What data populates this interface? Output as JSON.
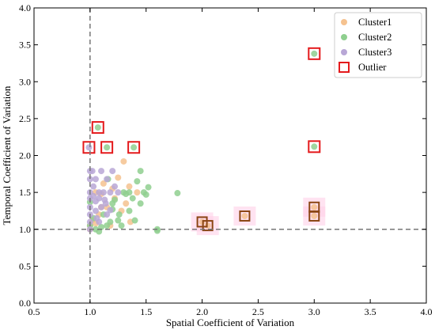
{
  "chart_data": {
    "type": "scatter",
    "title": "",
    "xlabel": "Spatial Coefficient of Variation",
    "ylabel": "Temporal Coefficient of Variation",
    "xlim": [
      0.5,
      4.0
    ],
    "ylim": [
      0.0,
      4.0
    ],
    "xticks": [
      "0.5",
      "1.0",
      "1.5",
      "2.0",
      "2.5",
      "3.0",
      "3.5",
      "4.0"
    ],
    "yticks": [
      "0.0",
      "0.5",
      "1.0",
      "1.5",
      "2.0",
      "2.5",
      "3.0",
      "3.5",
      "4.0"
    ],
    "grid": false,
    "legend_position": "top-right",
    "reference_lines": {
      "vertical_x": 1.0,
      "horizontal_y": 1.0
    },
    "series": [
      {
        "name": "Cluster1",
        "color": "#f5c28f",
        "points": [
          [
            1.0,
            1.0
          ],
          [
            1.0,
            1.05
          ],
          [
            1.02,
            1.12
          ],
          [
            1.05,
            1.08
          ],
          [
            1.08,
            1.2
          ],
          [
            1.1,
            1.3
          ],
          [
            1.05,
            1.5
          ],
          [
            1.12,
            1.62
          ],
          [
            1.2,
            1.55
          ],
          [
            1.25,
            1.7
          ],
          [
            1.18,
            1.05
          ],
          [
            1.3,
            1.92
          ],
          [
            1.35,
            1.58
          ],
          [
            1.36,
            1.1
          ],
          [
            1.42,
            1.5
          ],
          [
            1.28,
            1.25
          ],
          [
            1.1,
            1.48
          ],
          [
            1.15,
            1.3
          ],
          [
            1.22,
            1.42
          ],
          [
            1.32,
            1.35
          ],
          [
            2.0,
            1.1
          ],
          [
            2.05,
            1.05
          ],
          [
            2.38,
            1.18
          ],
          [
            3.0,
            1.18
          ],
          [
            3.0,
            1.3
          ]
        ]
      },
      {
        "name": "Cluster2",
        "color": "#8fcf8f",
        "points": [
          [
            1.0,
            1.37
          ],
          [
            1.0,
            1.05
          ],
          [
            1.03,
            1.15
          ],
          [
            1.05,
            1.0
          ],
          [
            1.08,
            0.97
          ],
          [
            1.1,
            1.03
          ],
          [
            1.12,
            1.2
          ],
          [
            1.15,
            1.05
          ],
          [
            1.18,
            1.1
          ],
          [
            1.2,
            1.27
          ],
          [
            1.22,
            1.4
          ],
          [
            1.25,
            1.12
          ],
          [
            1.28,
            1.05
          ],
          [
            1.3,
            1.5
          ],
          [
            1.32,
            1.48
          ],
          [
            1.35,
            1.5
          ],
          [
            1.38,
            1.42
          ],
          [
            1.4,
            1.12
          ],
          [
            1.42,
            1.65
          ],
          [
            1.45,
            1.79
          ],
          [
            1.48,
            1.5
          ],
          [
            1.5,
            1.47
          ],
          [
            1.52,
            1.57
          ],
          [
            1.45,
            1.35
          ],
          [
            1.6,
            1.0
          ],
          [
            1.6,
            0.98
          ],
          [
            1.78,
            1.49
          ],
          [
            1.16,
            1.68
          ],
          [
            1.2,
            1.35
          ],
          [
            1.26,
            1.2
          ],
          [
            1.35,
            1.25
          ],
          [
            1.07,
            2.38
          ],
          [
            1.15,
            2.11
          ],
          [
            1.39,
            2.11
          ],
          [
            3.0,
            3.38
          ],
          [
            3.0,
            2.12
          ]
        ]
      },
      {
        "name": "Cluster3",
        "color": "#b8a7d6",
        "points": [
          [
            0.99,
            2.11
          ],
          [
            1.0,
            1.79
          ],
          [
            1.0,
            1.68
          ],
          [
            1.0,
            1.5
          ],
          [
            1.0,
            1.42
          ],
          [
            1.0,
            1.3
          ],
          [
            1.0,
            1.2
          ],
          [
            1.0,
            1.1
          ],
          [
            1.0,
            1.0
          ],
          [
            1.02,
            1.79
          ],
          [
            1.03,
            1.58
          ],
          [
            1.03,
            1.45
          ],
          [
            1.05,
            1.68
          ],
          [
            1.05,
            1.38
          ],
          [
            1.05,
            1.25
          ],
          [
            1.06,
            1.15
          ],
          [
            1.08,
            1.5
          ],
          [
            1.08,
            1.42
          ],
          [
            1.1,
            1.79
          ],
          [
            1.1,
            1.3
          ],
          [
            1.12,
            1.5
          ],
          [
            1.13,
            1.4
          ],
          [
            1.15,
            1.68
          ],
          [
            1.15,
            1.2
          ],
          [
            1.18,
            1.5
          ],
          [
            1.2,
            1.79
          ],
          [
            1.22,
            1.58
          ],
          [
            1.25,
            1.5
          ],
          [
            1.08,
            1.1
          ],
          [
            1.14,
            1.35
          ],
          [
            1.18,
            1.26
          ]
        ]
      }
    ],
    "outliers": {
      "name": "Outlier",
      "points": [
        [
          0.99,
          2.11
        ],
        [
          1.07,
          2.38
        ],
        [
          1.15,
          2.11
        ],
        [
          1.39,
          2.11
        ],
        [
          3.0,
          3.38
        ],
        [
          3.0,
          2.12
        ],
        [
          2.0,
          1.1
        ],
        [
          2.05,
          1.05
        ],
        [
          2.38,
          1.18
        ],
        [
          3.0,
          1.18
        ],
        [
          3.0,
          1.3
        ]
      ],
      "dark_box_points": [
        [
          2.0,
          1.1
        ],
        [
          2.05,
          1.05
        ],
        [
          2.38,
          1.18
        ],
        [
          3.0,
          1.18
        ],
        [
          3.0,
          1.3
        ]
      ]
    },
    "colors": {
      "outlier_box": "#e41a1c",
      "outlier_box_dark": "#8b4513",
      "outlier_shade": "#ffd1e8",
      "reference_line": "#777777"
    }
  }
}
